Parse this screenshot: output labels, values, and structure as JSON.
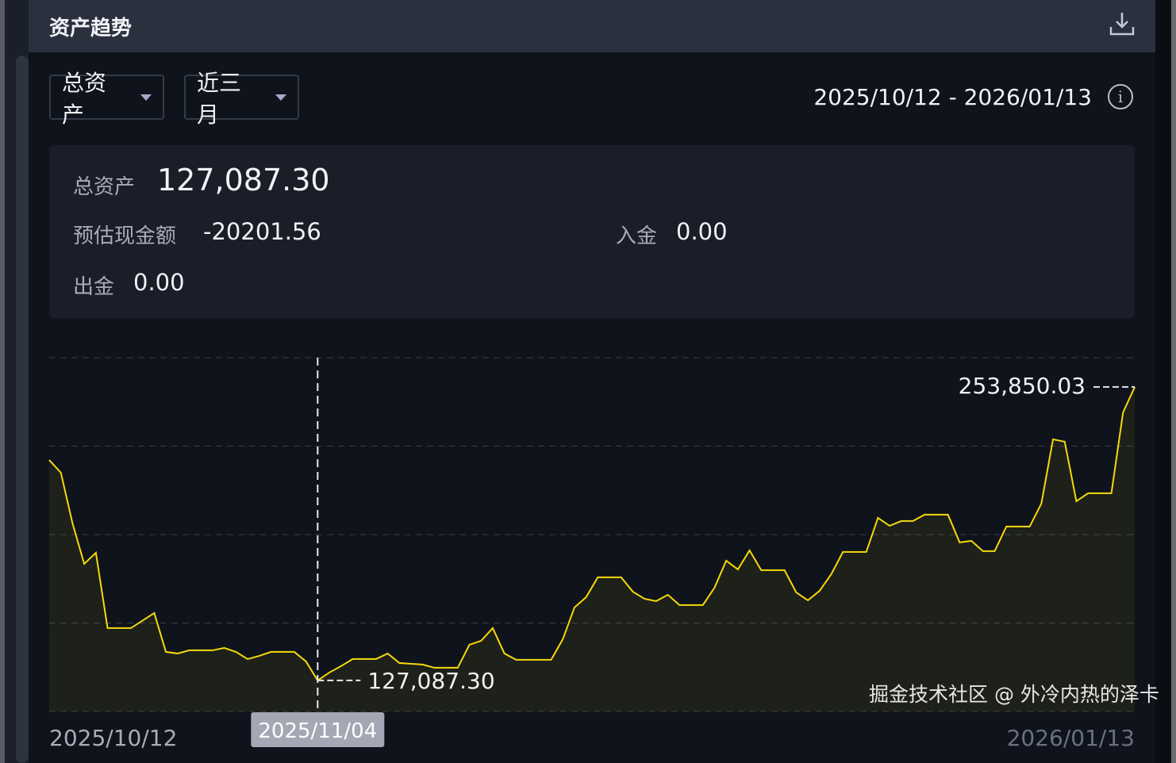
{
  "header": {
    "title": "资产趋势",
    "download_icon": "download-icon"
  },
  "filters": {
    "asset_type": "总资产",
    "period": "近三月",
    "date_range": "2025/10/12 - 2026/01/13",
    "info_icon": "info-icon"
  },
  "summary": {
    "total_label": "总资产",
    "total_value": "127,087.30",
    "cash_label": "预估现金额",
    "cash_value": "-20201.56",
    "deposit_label": "入金",
    "deposit_value": "0.00",
    "withdraw_label": "出金",
    "withdraw_value": "0.00"
  },
  "watermark": "掘金技术社区 @ 外冷内热的泽卡",
  "chart_data": {
    "type": "area",
    "line_color": "#f5d90a",
    "grid": true,
    "x_start_label": "2025/10/12",
    "x_end_label": "2026/01/13",
    "ylim": [
      113700,
      266500
    ],
    "crosshair": {
      "date_label": "2025/11/04",
      "value_label": "127,087.30"
    },
    "max_label": "253,850.03",
    "points": [
      [
        "2025-10-12",
        222330
      ],
      [
        "2025-10-13",
        216848
      ],
      [
        "2025-10-14",
        194922
      ],
      [
        "2025-10-15",
        177449
      ],
      [
        "2025-10-16",
        182246
      ],
      [
        "2025-10-17",
        149699
      ],
      [
        "2025-10-19",
        149699
      ],
      [
        "2025-10-21",
        156208
      ],
      [
        "2025-10-22",
        139421
      ],
      [
        "2025-10-23",
        138735
      ],
      [
        "2025-10-24",
        140106
      ],
      [
        "2025-10-26",
        140106
      ],
      [
        "2025-10-27",
        141134
      ],
      [
        "2025-10-28",
        139421
      ],
      [
        "2025-10-29",
        136337
      ],
      [
        "2025-10-30",
        137708
      ],
      [
        "2025-10-31",
        139421
      ],
      [
        "2025-11-02",
        139421
      ],
      [
        "2025-11-03",
        135309
      ],
      [
        "2025-11-04",
        127087.3
      ],
      [
        "2025-11-05",
        130513
      ],
      [
        "2025-11-06",
        133254
      ],
      [
        "2025-11-07",
        136337
      ],
      [
        "2025-11-09",
        136337
      ],
      [
        "2025-11-10",
        138735
      ],
      [
        "2025-11-11",
        134624
      ],
      [
        "2025-11-13",
        133939
      ],
      [
        "2025-11-14",
        132569
      ],
      [
        "2025-11-16",
        132569
      ],
      [
        "2025-11-17",
        142504
      ],
      [
        "2025-11-18",
        144217
      ],
      [
        "2025-11-19",
        149699
      ],
      [
        "2025-11-20",
        138735
      ],
      [
        "2025-11-21",
        135995
      ],
      [
        "2025-11-24",
        135995
      ],
      [
        "2025-11-25",
        144902
      ],
      [
        "2025-11-26",
        158606
      ],
      [
        "2025-11-27",
        163060
      ],
      [
        "2025-11-28",
        171625
      ],
      [
        "2025-11-30",
        171625
      ],
      [
        "2025-12-01",
        165458
      ],
      [
        "2025-12-02",
        162375
      ],
      [
        "2025-12-03",
        161347
      ],
      [
        "2025-12-04",
        164088
      ],
      [
        "2025-12-05",
        159634
      ],
      [
        "2025-12-07",
        159634
      ],
      [
        "2025-12-08",
        167171
      ],
      [
        "2025-12-09",
        178820
      ],
      [
        "2025-12-10",
        175051
      ],
      [
        "2025-12-11",
        183273
      ],
      [
        "2025-12-12",
        174708
      ],
      [
        "2025-12-14",
        174708
      ],
      [
        "2025-12-15",
        165116
      ],
      [
        "2025-12-16",
        161690
      ],
      [
        "2025-12-17",
        165801
      ],
      [
        "2025-12-18",
        172995
      ],
      [
        "2025-12-19",
        182588
      ],
      [
        "2025-12-21",
        182588
      ],
      [
        "2025-12-22",
        197320
      ],
      [
        "2025-12-23",
        193894
      ],
      [
        "2025-12-24",
        195950
      ],
      [
        "2025-12-25",
        195950
      ],
      [
        "2025-12-26",
        198690
      ],
      [
        "2025-12-28",
        198690
      ],
      [
        "2025-12-29",
        186699
      ],
      [
        "2025-12-30",
        187385
      ],
      [
        "2025-12-31",
        182931
      ],
      [
        "2026-01-01",
        182931
      ],
      [
        "2026-01-02",
        193551
      ],
      [
        "2026-01-04",
        193551
      ],
      [
        "2026-01-05",
        203487
      ],
      [
        "2026-01-06",
        231237
      ],
      [
        "2026-01-07",
        230210
      ],
      [
        "2026-01-08",
        204515
      ],
      [
        "2026-01-09",
        207941
      ],
      [
        "2026-01-11",
        207941
      ],
      [
        "2026-01-12",
        242886
      ],
      [
        "2026-01-13",
        253850.03
      ]
    ]
  }
}
